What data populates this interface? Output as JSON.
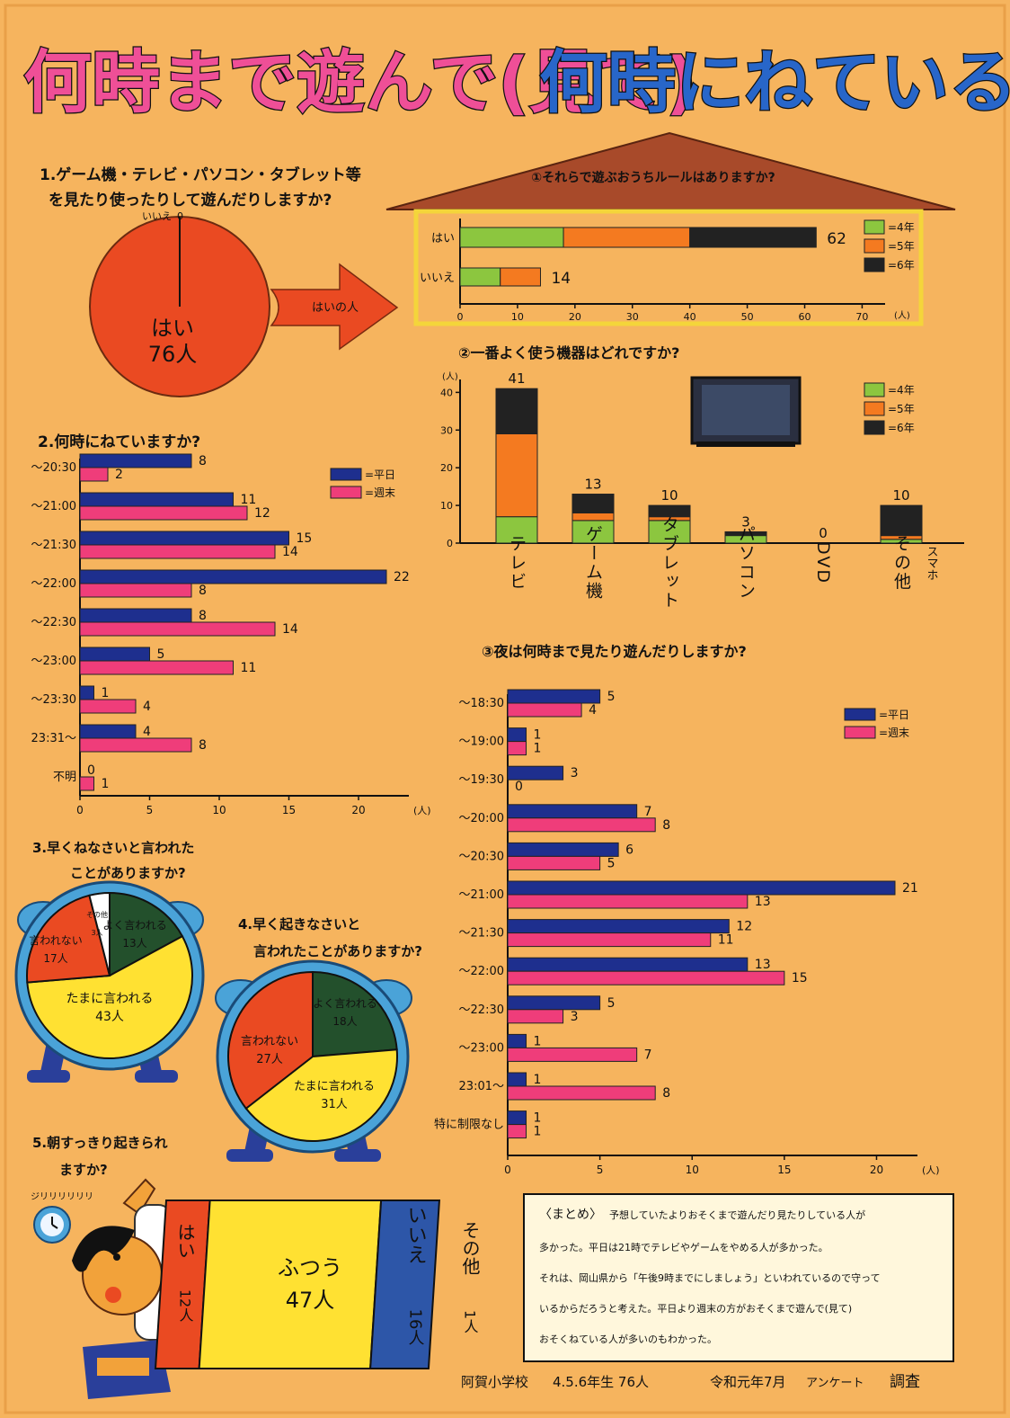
{
  "title": {
    "part1": "何時まで遊んで(見て)",
    "part2": "何時にねているの?"
  },
  "colors": {
    "bg": "#f6b45e",
    "blue": "#1e2f8e",
    "pink": "#ef3d7a",
    "green": "#8cc63f",
    "orange": "#f47a20",
    "black": "#222222",
    "red": "#ea4a22",
    "yellow": "#ffe132",
    "darkgreen": "#23502c"
  },
  "q1": {
    "title_line1": "1.ゲーム機・テレビ・パソコン・タブレット等",
    "title_line2": "を見たり使ったりして遊んだりしますか?",
    "pie": [
      {
        "label": "はい",
        "value": 76,
        "value_text": "76人"
      },
      {
        "label": "いいえ",
        "value": 0,
        "value_text": "0"
      }
    ],
    "arrow_label": "はいの人"
  },
  "q1a": {
    "title": "①それらで遊ぶおうちルールはありますか?",
    "legend": [
      "=4年",
      "=5年",
      "=6年"
    ],
    "categories": [
      "はい",
      "いいえ"
    ],
    "series": [
      {
        "name": "=4年",
        "values": [
          18,
          7
        ]
      },
      {
        "name": "=5年",
        "values": [
          22,
          7
        ]
      },
      {
        "name": "=6年",
        "values": [
          22,
          0
        ]
      }
    ],
    "totals": [
      62,
      14
    ],
    "xticks": [
      0,
      10,
      20,
      30,
      40,
      50,
      60,
      70
    ],
    "unit": "(人)",
    "xlim": [
      0,
      74
    ]
  },
  "q1b": {
    "title": "②一番よく使う機器はどれですか?",
    "legend": [
      "=4年",
      "=5年",
      "=6年"
    ],
    "categories": [
      "テレビ",
      "ゲーム機",
      "タブレット",
      "パソコン",
      "DVD",
      "その他"
    ],
    "sub_label": "スマホ",
    "series": [
      {
        "name": "=4年",
        "values": [
          7,
          6,
          6,
          2,
          0,
          1
        ]
      },
      {
        "name": "=5年",
        "values": [
          22,
          2,
          1,
          0,
          0,
          1
        ]
      },
      {
        "name": "=6年",
        "values": [
          12,
          5,
          3,
          1,
          0,
          8
        ]
      }
    ],
    "totals": [
      41,
      13,
      10,
      3,
      0,
      10
    ],
    "yticks": [
      0,
      10,
      20,
      30,
      40
    ],
    "unit": "(人)",
    "ylim": [
      0,
      42
    ]
  },
  "q2": {
    "title": "2.何時にねていますか?",
    "legend": [
      "=平日",
      "=週末"
    ],
    "categories": [
      "〜20:30",
      "〜21:00",
      "〜21:30",
      "〜22:00",
      "〜22:30",
      "〜23:00",
      "〜23:30",
      "23:31〜",
      "不明"
    ],
    "series": [
      {
        "name": "=平日",
        "values": [
          8,
          11,
          15,
          22,
          8,
          5,
          1,
          4,
          0
        ]
      },
      {
        "name": "=週末",
        "values": [
          2,
          12,
          14,
          8,
          14,
          11,
          4,
          8,
          1
        ]
      }
    ],
    "xticks": [
      0,
      5,
      10,
      15,
      20
    ],
    "unit": "(人)",
    "xlim": [
      0,
      22
    ]
  },
  "q3b": {
    "title": "③夜は何時まで見たり遊んだりしますか?",
    "legend": [
      "=平日",
      "=週末"
    ],
    "categories": [
      "〜18:30",
      "〜19:00",
      "〜19:30",
      "〜20:00",
      "〜20:30",
      "〜21:00",
      "〜21:30",
      "〜22:00",
      "〜22:30",
      "〜23:00",
      "23:01〜",
      "特に制限なし"
    ],
    "series": [
      {
        "name": "=平日",
        "values": [
          5,
          1,
          3,
          7,
          6,
          21,
          12,
          13,
          5,
          1,
          1,
          1
        ]
      },
      {
        "name": "=週末",
        "values": [
          4,
          1,
          0,
          8,
          5,
          13,
          11,
          15,
          3,
          7,
          8,
          1
        ]
      }
    ],
    "xticks": [
      0,
      5,
      10,
      15,
      20
    ],
    "unit": "(人)",
    "xlim": [
      0,
      21
    ]
  },
  "q3": {
    "title_line1": "3.早くねなさいと言われた",
    "title_line2": "ことがありますか?",
    "pie": [
      {
        "label": "よく言われる",
        "value": 13,
        "value_text": "13人"
      },
      {
        "label": "たまに言われる",
        "value": 43,
        "value_text": "43人"
      },
      {
        "label": "言われない",
        "value": 17,
        "value_text": "17人"
      },
      {
        "label": "その他",
        "value": 3,
        "value_text": "3人"
      }
    ]
  },
  "q4": {
    "title_line1": "4.早く起きなさいと",
    "title_line2": "言われたことがありますか?",
    "pie": [
      {
        "label": "よく言われる",
        "value": 18,
        "value_text": "18人"
      },
      {
        "label": "たまに言われる",
        "value": 31,
        "value_text": "31人"
      },
      {
        "label": "言われない",
        "value": 27,
        "value_text": "27人"
      }
    ]
  },
  "q5": {
    "title_line1": "5.朝すっきり起きられ",
    "title_line2": "ますか?",
    "sound": "ジリリリリリリ",
    "segments": [
      {
        "label": "はい",
        "value": 12,
        "value_text": "12人"
      },
      {
        "label": "ふつう",
        "value": 47,
        "value_text": "47人"
      },
      {
        "label": "いいえ",
        "value": 16,
        "value_text": "16人"
      },
      {
        "label": "その他",
        "value": 1,
        "value_text": "1人"
      }
    ]
  },
  "summary": {
    "heading": "〈まとめ〉",
    "lines": [
      "予想していたよりおそくまで遊んだり見たりしている人が",
      "多かった。平日は21時でテレビやゲームをやめる人が多かった。",
      "それは、岡山県から「午後9時までにしましょう」といわれているので守って",
      "いるからだろうと考えた。平日より週末の方がおそくまで遊んで(見て)",
      "おそくねている人が多いのもわかった。"
    ]
  },
  "footer": {
    "school": "阿賀小学校",
    "grades": "4.5.6年生 76人",
    "date": "令和元年7月",
    "type": "アンケート",
    "label": "調査"
  }
}
